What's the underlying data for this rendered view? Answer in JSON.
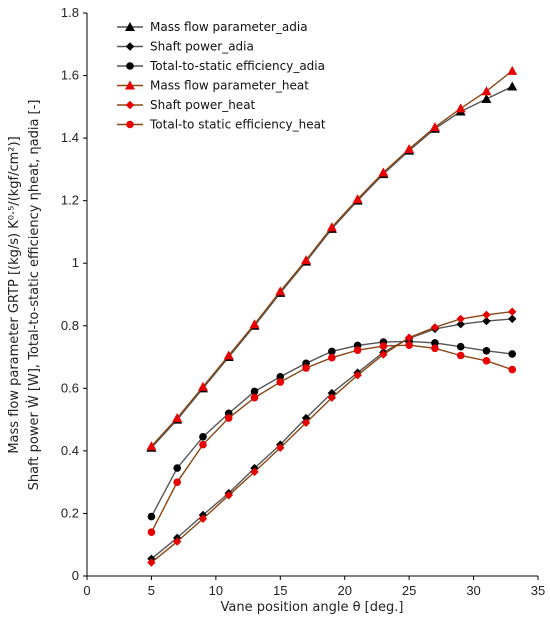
{
  "chart_data": {
    "type": "line",
    "xlabel": "Vane position angle θ [deg.]",
    "ylabel_line1": "Mass flow parameter GRTP [(kg/s) K⁰·⁵/(kgf/cm²)]",
    "ylabel_line2": "Shaft power Ẇ [W], Total-to-static efficiency ηheat, ηadia [-]",
    "xlim": [
      0,
      35
    ],
    "ylim": [
      0,
      1.8
    ],
    "xticks": [
      0,
      5,
      10,
      15,
      20,
      25,
      30,
      35
    ],
    "yticks": [
      0,
      0.2,
      0.4,
      0.6,
      0.8,
      1,
      1.2,
      1.4,
      1.6,
      1.8
    ],
    "grid": false,
    "legend_position": "top-left",
    "x": [
      5,
      7,
      9,
      11,
      13,
      15,
      17,
      19,
      21,
      23,
      25,
      27,
      29,
      31,
      33
    ],
    "series": [
      {
        "name": "Mass flow parameter_adia",
        "marker": "triangle",
        "color": "#000000",
        "line_color": "#555555",
        "values": [
          0.41,
          0.5,
          0.6,
          0.7,
          0.8,
          0.905,
          1.005,
          1.11,
          1.2,
          1.285,
          1.36,
          1.43,
          1.485,
          1.525,
          1.565
        ]
      },
      {
        "name": "Shaft power_adia",
        "marker": "diamond",
        "color": "#000000",
        "line_color": "#555555",
        "values": [
          0.055,
          0.122,
          0.195,
          0.265,
          0.345,
          0.42,
          0.505,
          0.585,
          0.65,
          0.715,
          0.76,
          0.79,
          0.805,
          0.815,
          0.822
        ]
      },
      {
        "name": "Total-to-static efficiency_adia",
        "marker": "circle",
        "color": "#000000",
        "line_color": "#555555",
        "values": [
          0.19,
          0.345,
          0.445,
          0.52,
          0.59,
          0.637,
          0.68,
          0.718,
          0.737,
          0.748,
          0.75,
          0.745,
          0.733,
          0.72,
          0.71
        ]
      },
      {
        "name": "Mass flow parameter_heat",
        "marker": "triangle",
        "color": "#e60000",
        "line_color": "#8b4513",
        "values": [
          0.415,
          0.505,
          0.605,
          0.705,
          0.805,
          0.91,
          1.01,
          1.115,
          1.205,
          1.29,
          1.365,
          1.435,
          1.495,
          1.55,
          1.615
        ]
      },
      {
        "name": "Shaft power_heat",
        "marker": "diamond",
        "color": "#e60000",
        "line_color": "#8b4513",
        "values": [
          0.043,
          0.11,
          0.183,
          0.258,
          0.333,
          0.41,
          0.49,
          0.57,
          0.642,
          0.708,
          0.762,
          0.795,
          0.822,
          0.835,
          0.845
        ]
      },
      {
        "name": "Total-to static efficiency_heat",
        "marker": "circle",
        "color": "#e60000",
        "line_color": "#8b4513",
        "values": [
          0.14,
          0.3,
          0.42,
          0.505,
          0.57,
          0.62,
          0.665,
          0.698,
          0.722,
          0.735,
          0.738,
          0.728,
          0.705,
          0.688,
          0.66
        ]
      }
    ]
  }
}
